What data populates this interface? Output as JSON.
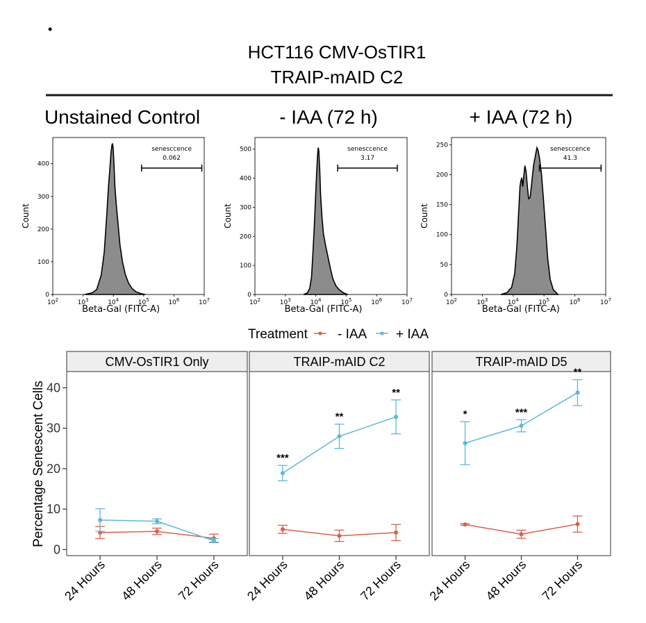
{
  "figure": {
    "bullet": "•",
    "title_line1": "HCT116 CMV-OsTIR1",
    "title_line2": "TRAIP-mAID C2"
  },
  "colors": {
    "minus_iaa": "#d9604a",
    "plus_iaa": "#5bb8d9",
    "hist_fill": "#8c8c8c"
  },
  "chart_data": [
    {
      "type": "area",
      "title": "Unstained Control",
      "xlabel": "Beta-Gal (FITC-A)",
      "ylabel": "Count",
      "x_scale": "log",
      "xlim_log10": [
        2,
        7
      ],
      "xticks_exp": [
        "2",
        "3",
        "4",
        "5",
        "6",
        "7"
      ],
      "ylim": [
        0,
        480
      ],
      "yticks": [
        0,
        100,
        200,
        300,
        400
      ],
      "gate": {
        "label": "senesccence",
        "value": "0.062",
        "range_log10": [
          4.93,
          6.92
        ]
      },
      "curve_log10": [
        [
          3.05,
          0
        ],
        [
          3.3,
          5
        ],
        [
          3.45,
          15
        ],
        [
          3.6,
          60
        ],
        [
          3.7,
          130
        ],
        [
          3.78,
          240
        ],
        [
          3.84,
          330
        ],
        [
          3.88,
          380
        ],
        [
          3.92,
          430
        ],
        [
          3.95,
          455
        ],
        [
          3.97,
          462
        ],
        [
          3.99,
          450
        ],
        [
          4.02,
          400
        ],
        [
          4.05,
          330
        ],
        [
          4.1,
          270
        ],
        [
          4.16,
          210
        ],
        [
          4.22,
          150
        ],
        [
          4.3,
          100
        ],
        [
          4.4,
          60
        ],
        [
          4.5,
          35
        ],
        [
          4.62,
          18
        ],
        [
          4.75,
          8
        ],
        [
          4.9,
          3
        ],
        [
          5.05,
          0
        ]
      ]
    },
    {
      "type": "area",
      "title": "- IAA (72 h)",
      "xlabel": "Beta-Gal (FITC-A)",
      "ylabel": "Count",
      "x_scale": "log",
      "xlim_log10": [
        2,
        7
      ],
      "xticks_exp": [
        "2",
        "3",
        "4",
        "5",
        "6",
        "7"
      ],
      "ylim": [
        0,
        540
      ],
      "yticks": [
        0,
        100,
        200,
        300,
        400,
        500
      ],
      "gate": {
        "label": "senesccence",
        "value": "3.17",
        "range_log10": [
          4.72,
          6.68
        ]
      },
      "curve_log10": [
        [
          3.6,
          0
        ],
        [
          3.72,
          5
        ],
        [
          3.8,
          20
        ],
        [
          3.86,
          60
        ],
        [
          3.9,
          130
        ],
        [
          3.95,
          230
        ],
        [
          3.99,
          330
        ],
        [
          4.03,
          420
        ],
        [
          4.06,
          480
        ],
        [
          4.08,
          505
        ],
        [
          4.1,
          495
        ],
        [
          4.13,
          430
        ],
        [
          4.16,
          340
        ],
        [
          4.2,
          270
        ],
        [
          4.25,
          210
        ],
        [
          4.32,
          170
        ],
        [
          4.4,
          130
        ],
        [
          4.48,
          90
        ],
        [
          4.56,
          55
        ],
        [
          4.66,
          30
        ],
        [
          4.78,
          15
        ],
        [
          4.92,
          5
        ],
        [
          5.05,
          0
        ]
      ]
    },
    {
      "type": "area",
      "title": "+ IAA (72 h)",
      "xlabel": "Beta-Gal (FITC-A)",
      "ylabel": "Count",
      "x_scale": "log",
      "xlim_log10": [
        2,
        7
      ],
      "xticks_exp": [
        "2",
        "3",
        "4",
        "5",
        "6",
        "7"
      ],
      "ylim": [
        0,
        262
      ],
      "yticks": [
        0,
        50,
        100,
        150,
        200,
        250
      ],
      "gate": {
        "label": "senesccence",
        "value": "41.3",
        "range_log10": [
          4.85,
          6.85
        ]
      },
      "curve_log10": [
        [
          3.6,
          0
        ],
        [
          3.8,
          3
        ],
        [
          3.95,
          12
        ],
        [
          4.05,
          35
        ],
        [
          4.12,
          80
        ],
        [
          4.18,
          140
        ],
        [
          4.22,
          180
        ],
        [
          4.25,
          190
        ],
        [
          4.28,
          195
        ],
        [
          4.31,
          180
        ],
        [
          4.35,
          200
        ],
        [
          4.38,
          215
        ],
        [
          4.42,
          205
        ],
        [
          4.46,
          180
        ],
        [
          4.5,
          160
        ],
        [
          4.55,
          162
        ],
        [
          4.6,
          185
        ],
        [
          4.66,
          215
        ],
        [
          4.72,
          232
        ],
        [
          4.77,
          245
        ],
        [
          4.81,
          240
        ],
        [
          4.86,
          225
        ],
        [
          4.92,
          200
        ],
        [
          4.98,
          160
        ],
        [
          5.05,
          110
        ],
        [
          5.12,
          60
        ],
        [
          5.2,
          25
        ],
        [
          5.3,
          8
        ],
        [
          5.45,
          0
        ]
      ]
    },
    {
      "type": "line",
      "title": "",
      "ylabel": "Percentage Senescent Cells",
      "ylim": [
        -1.5,
        44
      ],
      "yticks": [
        0,
        10,
        20,
        30,
        40
      ],
      "categories": [
        "24 Hours",
        "48 Hours",
        "72 Hours"
      ],
      "legend": {
        "title": "Treatment",
        "position": "top",
        "entries": [
          "- IAA",
          "+ IAA"
        ]
      },
      "panels": [
        {
          "label": "CMV-OsTIR1 Only",
          "series": [
            {
              "name": "- IAA",
              "values": [
                4.2,
                4.5,
                2.8
              ],
              "err": [
                1.5,
                0.8,
                1.0
              ]
            },
            {
              "name": "+ IAA",
              "values": [
                7.3,
                7.0,
                2.2
              ],
              "err": [
                2.8,
                0.6,
                0.5
              ]
            }
          ],
          "significance": [
            "",
            "",
            ""
          ]
        },
        {
          "label": "TRAIP-mAID C2",
          "series": [
            {
              "name": "- IAA",
              "values": [
                5.0,
                3.4,
                4.2
              ],
              "err": [
                1.0,
                1.4,
                2.0
              ]
            },
            {
              "name": "+ IAA",
              "values": [
                18.9,
                28.0,
                32.8
              ],
              "err": [
                1.9,
                3.0,
                4.2
              ]
            }
          ],
          "significance": [
            "***",
            "**",
            "**"
          ]
        },
        {
          "label": "TRAIP-mAID D5",
          "series": [
            {
              "name": "- IAA",
              "values": [
                6.2,
                3.8,
                6.3
              ],
              "err": [
                0.2,
                1.0,
                2.0
              ]
            },
            {
              "name": "+ IAA",
              "values": [
                26.3,
                30.6,
                38.8
              ],
              "err": [
                5.3,
                1.5,
                3.2
              ]
            }
          ],
          "significance": [
            "*",
            "***",
            "**"
          ]
        }
      ]
    }
  ]
}
